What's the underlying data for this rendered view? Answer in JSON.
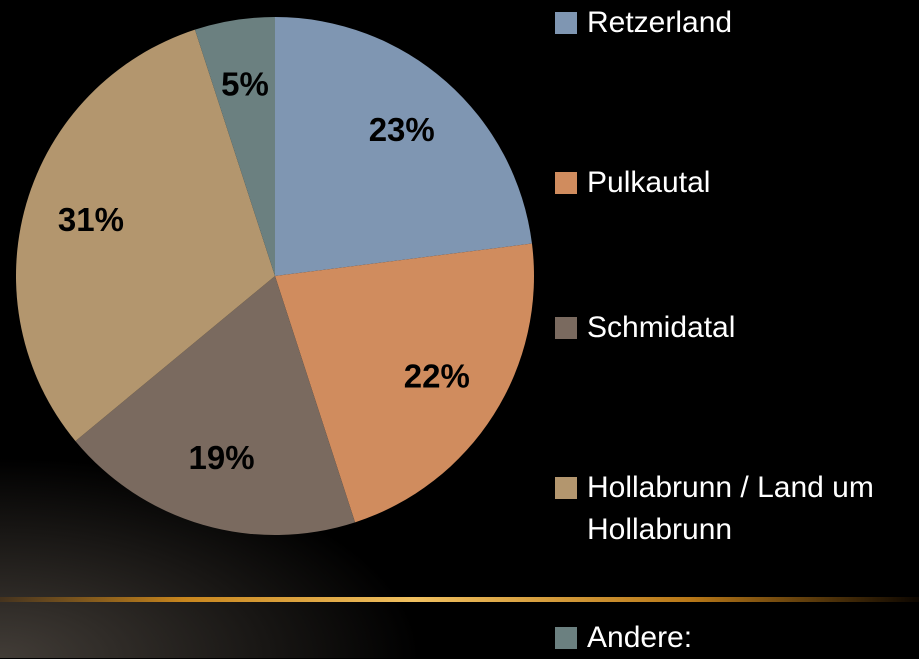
{
  "chart_data": {
    "type": "pie",
    "categories": [
      "Retzerland",
      "Pulkautal",
      "Schmidatal",
      "Hollabrunn / Land um Hollabrunn",
      "Andere:"
    ],
    "values": [
      23,
      22,
      19,
      31,
      5
    ],
    "value_labels": [
      "23%",
      "22%",
      "19%",
      "31%",
      "5%"
    ],
    "colors": [
      "#7f96b2",
      "#d08c5e",
      "#7a6a5f",
      "#b3966e",
      "#6b8080"
    ],
    "legend": "right"
  }
}
